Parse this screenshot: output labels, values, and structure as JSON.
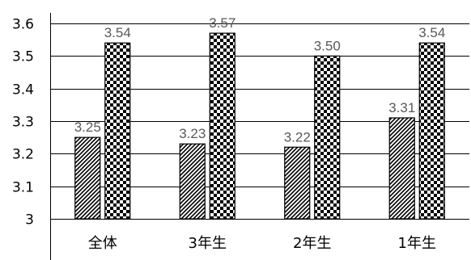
{
  "chart_data": {
    "type": "bar",
    "categories": [
      "全体",
      "3年生",
      "2年生",
      "1年生"
    ],
    "series": [
      {
        "values": [
          3.25,
          3.23,
          3.22,
          3.31
        ],
        "labels": [
          "3.25",
          "3.23",
          "3.22",
          "3.31"
        ],
        "pattern": "diagonal-hatch"
      },
      {
        "values": [
          3.54,
          3.57,
          3.5,
          3.54
        ],
        "labels": [
          "3.54",
          "3.57",
          "3.50",
          "3.54"
        ],
        "pattern": "checkerboard"
      }
    ],
    "y_ticks": [
      "3",
      "3.1",
      "3.2",
      "3.3",
      "3.4",
      "3.5",
      "3.6"
    ],
    "ylim": [
      3,
      3.6
    ],
    "grid": true,
    "legend": "none",
    "colors": {
      "bar_fill": "#000000",
      "bar_background": "#ffffff",
      "gridline": "#000000",
      "data_label": "#595959"
    }
  }
}
